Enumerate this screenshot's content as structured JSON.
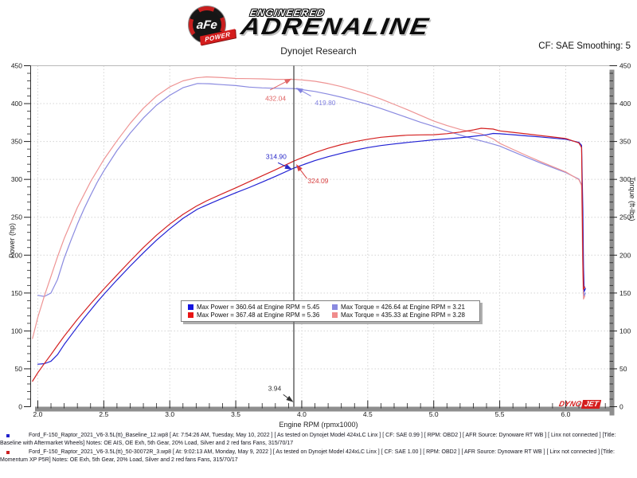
{
  "header": {
    "logo": {
      "circle_text": "aFe",
      "banner_text": "POWER",
      "line1": "ENGINEERED",
      "line2": "ADRENALINE"
    },
    "title": "Dynojet Research",
    "cf_label": "CF: SAE Smoothing: 5"
  },
  "watermark": {
    "part1": "DYNO",
    "part2": "JET"
  },
  "legend": {
    "items": [
      {
        "color": "#1414e0",
        "text": "Max Power = 360.64 at Engine RPM = 5.45"
      },
      {
        "color": "#8a8ae0",
        "text": "Max Torque = 426.64 at Engine RPM = 3.21"
      },
      {
        "color": "#e81414",
        "text": "Max Power = 367.48 at Engine RPM = 5.36"
      },
      {
        "color": "#f08c8c",
        "text": "Max Torque = 435.33 at Engine RPM = 3.28"
      }
    ]
  },
  "footer": {
    "runs": [
      {
        "bullet_color": "#2222cc",
        "text": "Ford_F-150_Raptor_2021_V6-3.5L(tt)_Baseline_12.wp8 [ At: 7:54:26 AM, Tuesday, May 10, 2022 ] [ As tested on Dynojet Model 424xLC Linx ] [ CF: SAE 0.99 ] [ RPM: OBD2 ] [ AFR Source: Dynoware RT WB ] [ Linx not connected ] [Title: Baseline with Aftermarket Wheels]  Notes: OE AIS, OE Exh, 5th Gear, 20% Load, Silver and 2 red fans Fans, 315/70/17"
      },
      {
        "bullet_color": "#cc2222",
        "text": "Ford_F-150_Raptor_2021_V6-3.5L(tt)_50-30072R_3.wp8 [ At: 9:02:13 AM, Monday, May 9, 2022 ] [ As tested on Dynojet Model 424xLC Linx ] [ CF: SAE 1.00 ] [ RPM: OBD2 ] [ AFR Source: Dynoware RT WB ] [ Linx not connected ] [Title: Momentum XP P5R]  Notes: OE Exh, 5th Gear, 20% Load, Silver and 2 red fans Fans, 315/70/17"
      }
    ]
  },
  "chart_data": {
    "type": "line",
    "title": "Dynojet Research",
    "xlabel": "Engine RPM (rpmx1000)",
    "ylabel_left": "Power (hp)",
    "ylabel_right": "Torque (ft-lbs)",
    "x_axis": {
      "min": 1.946,
      "max": 6.332,
      "major_tick": 0.5,
      "minor_tick": 0.1,
      "label_min": 2.0,
      "label_max": 6.0
    },
    "y_axis": {
      "min": 0,
      "max": 450,
      "major_tick": 50,
      "minor_tick": 10
    },
    "grid": true,
    "legend_position": "bottom-center",
    "cursor": {
      "rpm": 3.94
    },
    "series": [
      {
        "name": "baseline-torque",
        "unit": "ft-lbs",
        "axis": "right",
        "color": "#8a8ae0",
        "points": [
          [
            2.0,
            147
          ],
          [
            2.05,
            145.5
          ],
          [
            2.1,
            150
          ],
          [
            2.15,
            168
          ],
          [
            2.2,
            196
          ],
          [
            2.25,
            219
          ],
          [
            2.3,
            241
          ],
          [
            2.35,
            261
          ],
          [
            2.4,
            279
          ],
          [
            2.45,
            296
          ],
          [
            2.5,
            311
          ],
          [
            2.6,
            338
          ],
          [
            2.7,
            361
          ],
          [
            2.8,
            381
          ],
          [
            2.9,
            398
          ],
          [
            3.0,
            411
          ],
          [
            3.1,
            421
          ],
          [
            3.21,
            426.6
          ],
          [
            3.3,
            426.2
          ],
          [
            3.4,
            425
          ],
          [
            3.5,
            423.8
          ],
          [
            3.6,
            421.8
          ],
          [
            3.7,
            420.8
          ],
          [
            3.8,
            420.2
          ],
          [
            3.94,
            419.8
          ],
          [
            4.0,
            418.5
          ],
          [
            4.1,
            416
          ],
          [
            4.2,
            412.5
          ],
          [
            4.3,
            408.5
          ],
          [
            4.4,
            404
          ],
          [
            4.5,
            399
          ],
          [
            4.6,
            393.5
          ],
          [
            4.7,
            387.5
          ],
          [
            4.8,
            381.5
          ],
          [
            4.9,
            375.5
          ],
          [
            5.0,
            370
          ],
          [
            5.1,
            364
          ],
          [
            5.2,
            358.5
          ],
          [
            5.3,
            353.5
          ],
          [
            5.4,
            349
          ],
          [
            5.5,
            344
          ],
          [
            5.6,
            336.7
          ],
          [
            5.7,
            329.4
          ],
          [
            5.8,
            322.4
          ],
          [
            5.9,
            315.6
          ],
          [
            6.0,
            309
          ],
          [
            6.1,
            300.4
          ],
          [
            6.12,
            293
          ],
          [
            6.13,
            230
          ],
          [
            6.135,
            165
          ],
          [
            6.14,
            146
          ],
          [
            6.15,
            150
          ]
        ]
      },
      {
        "name": "momentum-torque",
        "unit": "ft-lbs",
        "axis": "right",
        "color": "#ee9494",
        "points": [
          [
            1.96,
            90
          ],
          [
            2.0,
            118
          ],
          [
            2.05,
            146
          ],
          [
            2.1,
            172
          ],
          [
            2.15,
            198
          ],
          [
            2.2,
            222
          ],
          [
            2.3,
            263
          ],
          [
            2.4,
            297
          ],
          [
            2.5,
            326
          ],
          [
            2.6,
            351
          ],
          [
            2.7,
            374
          ],
          [
            2.8,
            394
          ],
          [
            2.9,
            410
          ],
          [
            3.0,
            422
          ],
          [
            3.1,
            430
          ],
          [
            3.2,
            434
          ],
          [
            3.28,
            435.3
          ],
          [
            3.4,
            434.3
          ],
          [
            3.5,
            433.2
          ],
          [
            3.6,
            433
          ],
          [
            3.7,
            432.6
          ],
          [
            3.8,
            432
          ],
          [
            3.94,
            432
          ],
          [
            4.0,
            431.3
          ],
          [
            4.1,
            429.5
          ],
          [
            4.2,
            426.5
          ],
          [
            4.3,
            422.5
          ],
          [
            4.4,
            417.5
          ],
          [
            4.5,
            412
          ],
          [
            4.6,
            406
          ],
          [
            4.7,
            399
          ],
          [
            4.8,
            392
          ],
          [
            4.9,
            384.5
          ],
          [
            5.0,
            377
          ],
          [
            5.1,
            371
          ],
          [
            5.2,
            366
          ],
          [
            5.3,
            362
          ],
          [
            5.36,
            360.1
          ],
          [
            5.45,
            353.5
          ],
          [
            5.5,
            347.6
          ],
          [
            5.6,
            339.6
          ],
          [
            5.7,
            331.7
          ],
          [
            5.8,
            324.1
          ],
          [
            5.9,
            316.9
          ],
          [
            6.0,
            309.9
          ],
          [
            6.1,
            299.6
          ],
          [
            6.12,
            292
          ],
          [
            6.125,
            235
          ],
          [
            6.13,
            170
          ],
          [
            6.135,
            142
          ],
          [
            6.145,
            146
          ]
        ]
      },
      {
        "name": "baseline-power",
        "unit": "hp",
        "axis": "left",
        "color": "#2121d4",
        "points": [
          [
            2.0,
            56
          ],
          [
            2.05,
            56.8
          ],
          [
            2.1,
            60
          ],
          [
            2.15,
            68.8
          ],
          [
            2.2,
            82.1
          ],
          [
            2.25,
            93.8
          ],
          [
            2.3,
            105.5
          ],
          [
            2.35,
            116.8
          ],
          [
            2.4,
            127.5
          ],
          [
            2.45,
            138.1
          ],
          [
            2.5,
            148.1
          ],
          [
            2.6,
            167.3
          ],
          [
            2.7,
            185.6
          ],
          [
            2.8,
            203.1
          ],
          [
            2.9,
            219.8
          ],
          [
            3.0,
            234.8
          ],
          [
            3.1,
            248.5
          ],
          [
            3.21,
            260.7
          ],
          [
            3.3,
            267.7
          ],
          [
            3.4,
            275.1
          ],
          [
            3.5,
            282.4
          ],
          [
            3.6,
            289.1
          ],
          [
            3.7,
            296.4
          ],
          [
            3.8,
            304
          ],
          [
            3.94,
            314.9
          ],
          [
            4.0,
            318.7
          ],
          [
            4.1,
            324.8
          ],
          [
            4.2,
            329.9
          ],
          [
            4.3,
            334.5
          ],
          [
            4.4,
            338.5
          ],
          [
            4.5,
            341.9
          ],
          [
            4.6,
            344.6
          ],
          [
            4.7,
            346.8
          ],
          [
            4.8,
            348.7
          ],
          [
            4.9,
            350.4
          ],
          [
            5.0,
            352.2
          ],
          [
            5.1,
            353.5
          ],
          [
            5.2,
            355
          ],
          [
            5.3,
            356.8
          ],
          [
            5.4,
            358.8
          ],
          [
            5.45,
            360.6
          ],
          [
            5.5,
            360.2
          ],
          [
            5.6,
            359
          ],
          [
            5.7,
            357.5
          ],
          [
            5.8,
            356.1
          ],
          [
            5.9,
            354.5
          ],
          [
            6.0,
            353
          ],
          [
            6.1,
            348.9
          ],
          [
            6.12,
            345
          ],
          [
            6.13,
            260
          ],
          [
            6.135,
            185
          ],
          [
            6.14,
            152
          ],
          [
            6.15,
            156
          ]
        ]
      },
      {
        "name": "momentum-power",
        "unit": "hp",
        "axis": "left",
        "color": "#d42121",
        "points": [
          [
            1.96,
            33.6
          ],
          [
            2.0,
            44.9
          ],
          [
            2.05,
            57
          ],
          [
            2.1,
            68.8
          ],
          [
            2.15,
            81.1
          ],
          [
            2.2,
            93
          ],
          [
            2.3,
            115.2
          ],
          [
            2.4,
            135.7
          ],
          [
            2.5,
            155.2
          ],
          [
            2.6,
            173.8
          ],
          [
            2.7,
            192.3
          ],
          [
            2.8,
            210.1
          ],
          [
            2.9,
            226.4
          ],
          [
            3.0,
            241
          ],
          [
            3.1,
            253.8
          ],
          [
            3.2,
            264.5
          ],
          [
            3.28,
            271.8
          ],
          [
            3.4,
            281.1
          ],
          [
            3.5,
            288.8
          ],
          [
            3.6,
            296.8
          ],
          [
            3.7,
            304.7
          ],
          [
            3.8,
            312.6
          ],
          [
            3.94,
            324.1
          ],
          [
            4.0,
            328.5
          ],
          [
            4.1,
            335.3
          ],
          [
            4.2,
            341.1
          ],
          [
            4.3,
            345.9
          ],
          [
            4.4,
            349.8
          ],
          [
            4.5,
            353
          ],
          [
            4.6,
            355.6
          ],
          [
            4.7,
            357.1
          ],
          [
            4.8,
            358.3
          ],
          [
            4.9,
            358.7
          ],
          [
            5.0,
            359
          ],
          [
            5.1,
            360.3
          ],
          [
            5.2,
            362.4
          ],
          [
            5.3,
            365.3
          ],
          [
            5.36,
            367.5
          ],
          [
            5.45,
            366.4
          ],
          [
            5.5,
            364
          ],
          [
            5.6,
            362.1
          ],
          [
            5.7,
            360.1
          ],
          [
            5.8,
            358
          ],
          [
            5.9,
            356
          ],
          [
            6.0,
            354
          ],
          [
            6.1,
            348.1
          ],
          [
            6.12,
            342
          ],
          [
            6.125,
            270
          ],
          [
            6.13,
            195
          ],
          [
            6.135,
            155
          ],
          [
            6.145,
            158
          ]
        ]
      }
    ],
    "annotations": [
      {
        "text": "432.04",
        "color": "#e06666",
        "anchor": "end",
        "label_rpm": 3.88,
        "label_value": 404,
        "from_rpm": 3.76,
        "from_value": 418,
        "tip_rpm": 3.925,
        "tip_value": 433
      },
      {
        "text": "419.80",
        "color": "#8080e0",
        "anchor": "start",
        "label_rpm": 4.1,
        "label_value": 398,
        "from_rpm": 4.07,
        "from_value": 410,
        "tip_rpm": 3.955,
        "tip_value": 421
      },
      {
        "text": "314.90",
        "color": "#2a2ac8",
        "anchor": "end",
        "label_rpm": 3.885,
        "label_value": 327,
        "from_rpm": 3.82,
        "from_value": 322,
        "tip_rpm": 3.927,
        "tip_value": 313
      },
      {
        "text": "324.09",
        "color": "#d84040",
        "anchor": "start",
        "label_rpm": 4.045,
        "label_value": 295,
        "from_rpm": 4.04,
        "from_value": 301,
        "tip_rpm": 3.957,
        "tip_value": 320
      },
      {
        "text": "3.94",
        "color": "#333333",
        "anchor": "end",
        "label_rpm": 3.845,
        "label_value": 21,
        "from_rpm": 3.86,
        "from_value": 16,
        "tip_rpm": 3.937,
        "tip_value": 6
      }
    ]
  }
}
